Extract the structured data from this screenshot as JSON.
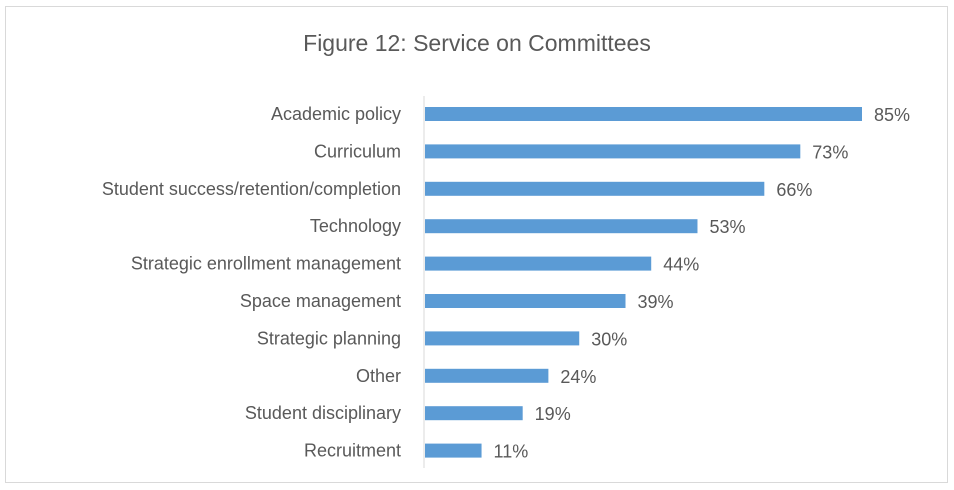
{
  "chart_data": {
    "type": "bar",
    "orientation": "horizontal",
    "title": "Figure 12: Service on Committees",
    "categories": [
      "Academic policy",
      "Curriculum",
      "Student success/retention/completion",
      "Technology",
      "Strategic enrollment management",
      "Space management",
      "Strategic planning",
      "Other",
      "Student disciplinary",
      "Recruitment"
    ],
    "values": [
      85,
      73,
      66,
      53,
      44,
      39,
      30,
      24,
      19,
      11
    ],
    "value_labels": [
      "85%",
      "73%",
      "66%",
      "53%",
      "44%",
      "39%",
      "30%",
      "24%",
      "19%",
      "11%"
    ],
    "xlim": [
      0,
      100
    ],
    "unit": "%",
    "grid": false,
    "legend": "none",
    "colors": {
      "bar": "#5b9bd5",
      "text": "#595959",
      "axis": "#d9d9d9"
    }
  }
}
